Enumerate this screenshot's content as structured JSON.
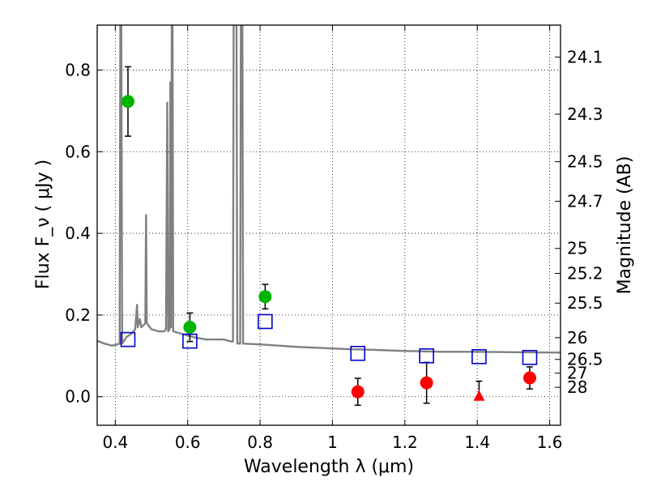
{
  "chart_data": {
    "type": "scatter",
    "title": "",
    "xlabel": "Wavelength  λ (μm)",
    "ylabel": "Flux  F_ν  ( μJy )",
    "y2label": "Magnitude (AB)",
    "xlim": [
      0.35,
      1.63
    ],
    "ylim": [
      -0.07,
      0.91
    ],
    "grid": true,
    "x_ticks": [
      {
        "value": 0.4,
        "label": "0.4"
      },
      {
        "value": 0.6,
        "label": "0.6"
      },
      {
        "value": 0.8,
        "label": "0.8"
      },
      {
        "value": 1.0,
        "label": "1"
      },
      {
        "value": 1.2,
        "label": "1.2"
      },
      {
        "value": 1.4,
        "label": "1.4"
      },
      {
        "value": 1.6,
        "label": "1.6"
      }
    ],
    "y_ticks": [
      {
        "value": 0.0,
        "label": "0.0"
      },
      {
        "value": 0.2,
        "label": "0.2"
      },
      {
        "value": 0.4,
        "label": "0.4"
      },
      {
        "value": 0.6,
        "label": "0.6"
      },
      {
        "value": 0.8,
        "label": "0.8"
      }
    ],
    "magnitude_ticks": [
      {
        "value": 24.1,
        "label": "24.1"
      },
      {
        "value": 24.3,
        "label": "24.3"
      },
      {
        "value": 24.5,
        "label": "24.5"
      },
      {
        "value": 24.7,
        "label": "24.7"
      },
      {
        "value": 25,
        "label": "25"
      },
      {
        "value": 25.2,
        "label": "25.2"
      },
      {
        "value": 25.5,
        "label": "25.5"
      },
      {
        "value": 26,
        "label": "26"
      },
      {
        "value": 26.5,
        "label": "26.5"
      },
      {
        "value": 27,
        "label": "27"
      },
      {
        "value": 28,
        "label": "28"
      }
    ],
    "spectrum": {
      "color": "#808080",
      "points": [
        [
          0.35,
          0.137
        ],
        [
          0.37,
          0.13
        ],
        [
          0.39,
          0.125
        ],
        [
          0.405,
          0.128
        ],
        [
          0.412,
          0.13
        ],
        [
          0.414,
          0.95
        ],
        [
          0.4165,
          0.95
        ],
        [
          0.419,
          0.13
        ],
        [
          0.43,
          0.145
        ],
        [
          0.445,
          0.155
        ],
        [
          0.455,
          0.165
        ],
        [
          0.46,
          0.225
        ],
        [
          0.462,
          0.17
        ],
        [
          0.468,
          0.19
        ],
        [
          0.472,
          0.17
        ],
        [
          0.478,
          0.175
        ],
        [
          0.483,
          0.18
        ],
        [
          0.485,
          0.445
        ],
        [
          0.487,
          0.18
        ],
        [
          0.5,
          0.165
        ],
        [
          0.52,
          0.16
        ],
        [
          0.535,
          0.16
        ],
        [
          0.54,
          0.165
        ],
        [
          0.5435,
          0.72
        ],
        [
          0.546,
          0.16
        ],
        [
          0.55,
          0.165
        ],
        [
          0.552,
          0.77
        ],
        [
          0.554,
          0.17
        ],
        [
          0.556,
          0.95
        ],
        [
          0.558,
          0.95
        ],
        [
          0.56,
          0.16
        ],
        [
          0.58,
          0.155
        ],
        [
          0.6,
          0.15
        ],
        [
          0.62,
          0.145
        ],
        [
          0.65,
          0.14
        ],
        [
          0.68,
          0.14
        ],
        [
          0.7,
          0.14
        ],
        [
          0.72,
          0.135
        ],
        [
          0.725,
          0.135
        ],
        [
          0.727,
          0.95
        ],
        [
          0.735,
          0.95
        ],
        [
          0.737,
          0.13
        ],
        [
          0.745,
          0.13
        ],
        [
          0.747,
          0.95
        ],
        [
          0.751,
          0.95
        ],
        [
          0.753,
          0.13
        ],
        [
          0.8,
          0.128
        ],
        [
          0.85,
          0.125
        ],
        [
          0.9,
          0.122
        ],
        [
          0.95,
          0.12
        ],
        [
          1.0,
          0.118
        ],
        [
          1.05,
          0.116
        ],
        [
          1.1,
          0.115
        ],
        [
          1.2,
          0.112
        ],
        [
          1.3,
          0.11
        ],
        [
          1.4,
          0.11
        ],
        [
          1.5,
          0.109
        ],
        [
          1.63,
          0.108
        ]
      ]
    },
    "series": [
      {
        "name": "",
        "marker": "circle",
        "color": "#00b400",
        "points": [
          {
            "x": 0.435,
            "y": 0.723,
            "err": 0.085
          },
          {
            "x": 0.606,
            "y": 0.17,
            "err": 0.035
          },
          {
            "x": 0.814,
            "y": 0.245,
            "err": 0.03
          }
        ]
      },
      {
        "name": "",
        "marker": "circle",
        "color": "#ff0000",
        "points": [
          {
            "x": 1.07,
            "y": 0.012,
            "err": 0.033
          },
          {
            "x": 1.26,
            "y": 0.034,
            "err": 0.05
          },
          {
            "x": 1.545,
            "y": 0.046,
            "err": 0.027
          }
        ]
      },
      {
        "name": "",
        "marker": "triangle",
        "color": "#ff0000",
        "points": [
          {
            "x": 1.405,
            "y": 0.0,
            "err_up": 0.038
          }
        ]
      },
      {
        "name": "",
        "marker": "square-open",
        "color": "#0000cc",
        "points": [
          {
            "x": 0.435,
            "y": 0.14
          },
          {
            "x": 0.606,
            "y": 0.136
          },
          {
            "x": 0.814,
            "y": 0.184
          },
          {
            "x": 1.07,
            "y": 0.106
          },
          {
            "x": 1.26,
            "y": 0.1
          },
          {
            "x": 1.405,
            "y": 0.098
          },
          {
            "x": 1.545,
            "y": 0.096
          }
        ]
      }
    ]
  }
}
